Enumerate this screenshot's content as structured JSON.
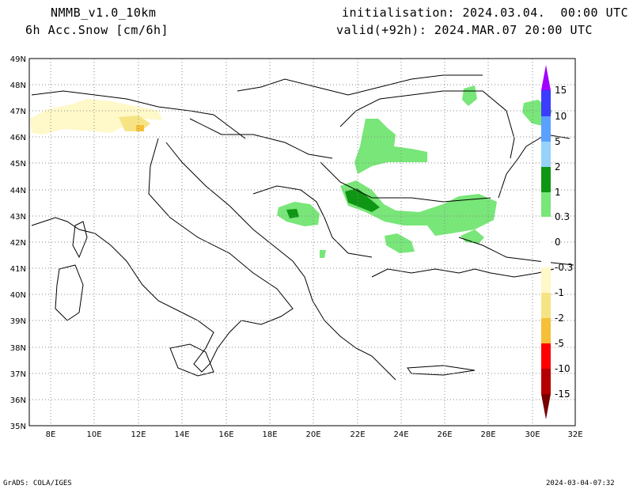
{
  "header": {
    "model": "NMMB_v1.0_10km",
    "field": "6h Acc.Snow [cm/6h]",
    "init": "initialisation: 2024.03.04.  00:00 UTC",
    "valid": "valid(+92h): 2024.MAR.07 20:00 UTC"
  },
  "footer": {
    "left": "GrADS: COLA/IGES",
    "right": "2024-03-04-07:32"
  },
  "map": {
    "lon_range": [
      7,
      32
    ],
    "lat_range": [
      35,
      49
    ],
    "lon_ticks": [
      "8E",
      "10E",
      "12E",
      "14E",
      "16E",
      "18E",
      "20E",
      "22E",
      "24E",
      "26E",
      "28E",
      "30E",
      "32E"
    ],
    "lat_ticks": [
      "35N",
      "36N",
      "37N",
      "38N",
      "39N",
      "40N",
      "41N",
      "42N",
      "43N",
      "44N",
      "45N",
      "46N",
      "47N",
      "48N",
      "49N"
    ]
  },
  "colorbar": {
    "labels": [
      "15",
      "10",
      "5",
      "2",
      "1",
      "0.3",
      "0",
      "-0.3",
      "-1",
      "-2",
      "-5",
      "-10",
      "-15"
    ],
    "colors": {
      "c15": "#a000ff",
      "c10": "#3c3cff",
      "c5": "#5aa0ff",
      "c2": "#96d2fa",
      "c1": "#0f9614",
      "c03": "#78e678",
      "cm03": "#fff8c8",
      "cm1": "#f6e484",
      "cm2": "#f5c038",
      "cm5": "#f59040",
      "cm10": "#ff0000",
      "cm15": "#b40000",
      "cmx": "#780000"
    }
  }
}
